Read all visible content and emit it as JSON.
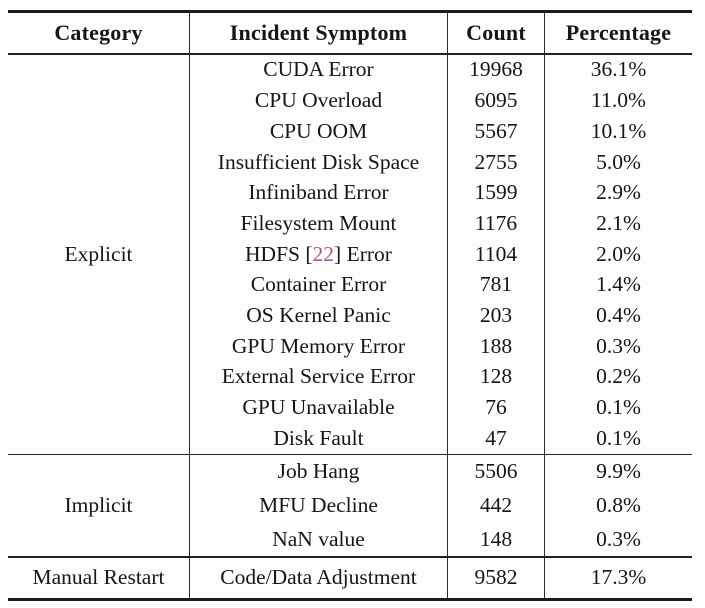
{
  "colors": {
    "citation": "#a85a96",
    "rule": "#1b1b1b",
    "text": "#161616",
    "background": "#fdfdfb"
  },
  "table": {
    "headers": {
      "category": "Category",
      "symptom": "Incident Symptom",
      "count": "Count",
      "percentage": "Percentage"
    },
    "groups": [
      {
        "category": "Explicit",
        "rows": [
          {
            "symptom": "CUDA Error",
            "count": "19968",
            "percentage": "36.1%"
          },
          {
            "symptom": "CPU Overload",
            "count": "6095",
            "percentage": "11.0%"
          },
          {
            "symptom": "CPU OOM",
            "count": "5567",
            "percentage": "10.1%"
          },
          {
            "symptom": "Insufficient Disk Space",
            "count": "2755",
            "percentage": "5.0%"
          },
          {
            "symptom": "Infiniband Error",
            "count": "1599",
            "percentage": "2.9%"
          },
          {
            "symptom": "Filesystem Mount",
            "count": "1176",
            "percentage": "2.1%"
          },
          {
            "symptom_pre": "HDFS [",
            "citation": "22",
            "symptom_post": "] Error",
            "count": "1104",
            "percentage": "2.0%"
          },
          {
            "symptom": "Container Error",
            "count": "781",
            "percentage": "1.4%"
          },
          {
            "symptom": "OS Kernel Panic",
            "count": "203",
            "percentage": "0.4%"
          },
          {
            "symptom": "GPU Memory Error",
            "count": "188",
            "percentage": "0.3%"
          },
          {
            "symptom": "External Service Error",
            "count": "128",
            "percentage": "0.2%"
          },
          {
            "symptom": "GPU Unavailable",
            "count": "76",
            "percentage": "0.1%"
          },
          {
            "symptom": "Disk Fault",
            "count": "47",
            "percentage": "0.1%"
          }
        ]
      },
      {
        "category": "Implicit",
        "rows": [
          {
            "symptom": "Job Hang",
            "count": "5506",
            "percentage": "9.9%"
          },
          {
            "symptom": "MFU Decline",
            "count": "442",
            "percentage": "0.8%"
          },
          {
            "symptom": "NaN value",
            "count": "148",
            "percentage": "0.3%"
          }
        ]
      },
      {
        "category": "Manual Restart",
        "rows": [
          {
            "symptom": "Code/Data Adjustment",
            "count": "9582",
            "percentage": "17.3%"
          }
        ]
      }
    ]
  }
}
